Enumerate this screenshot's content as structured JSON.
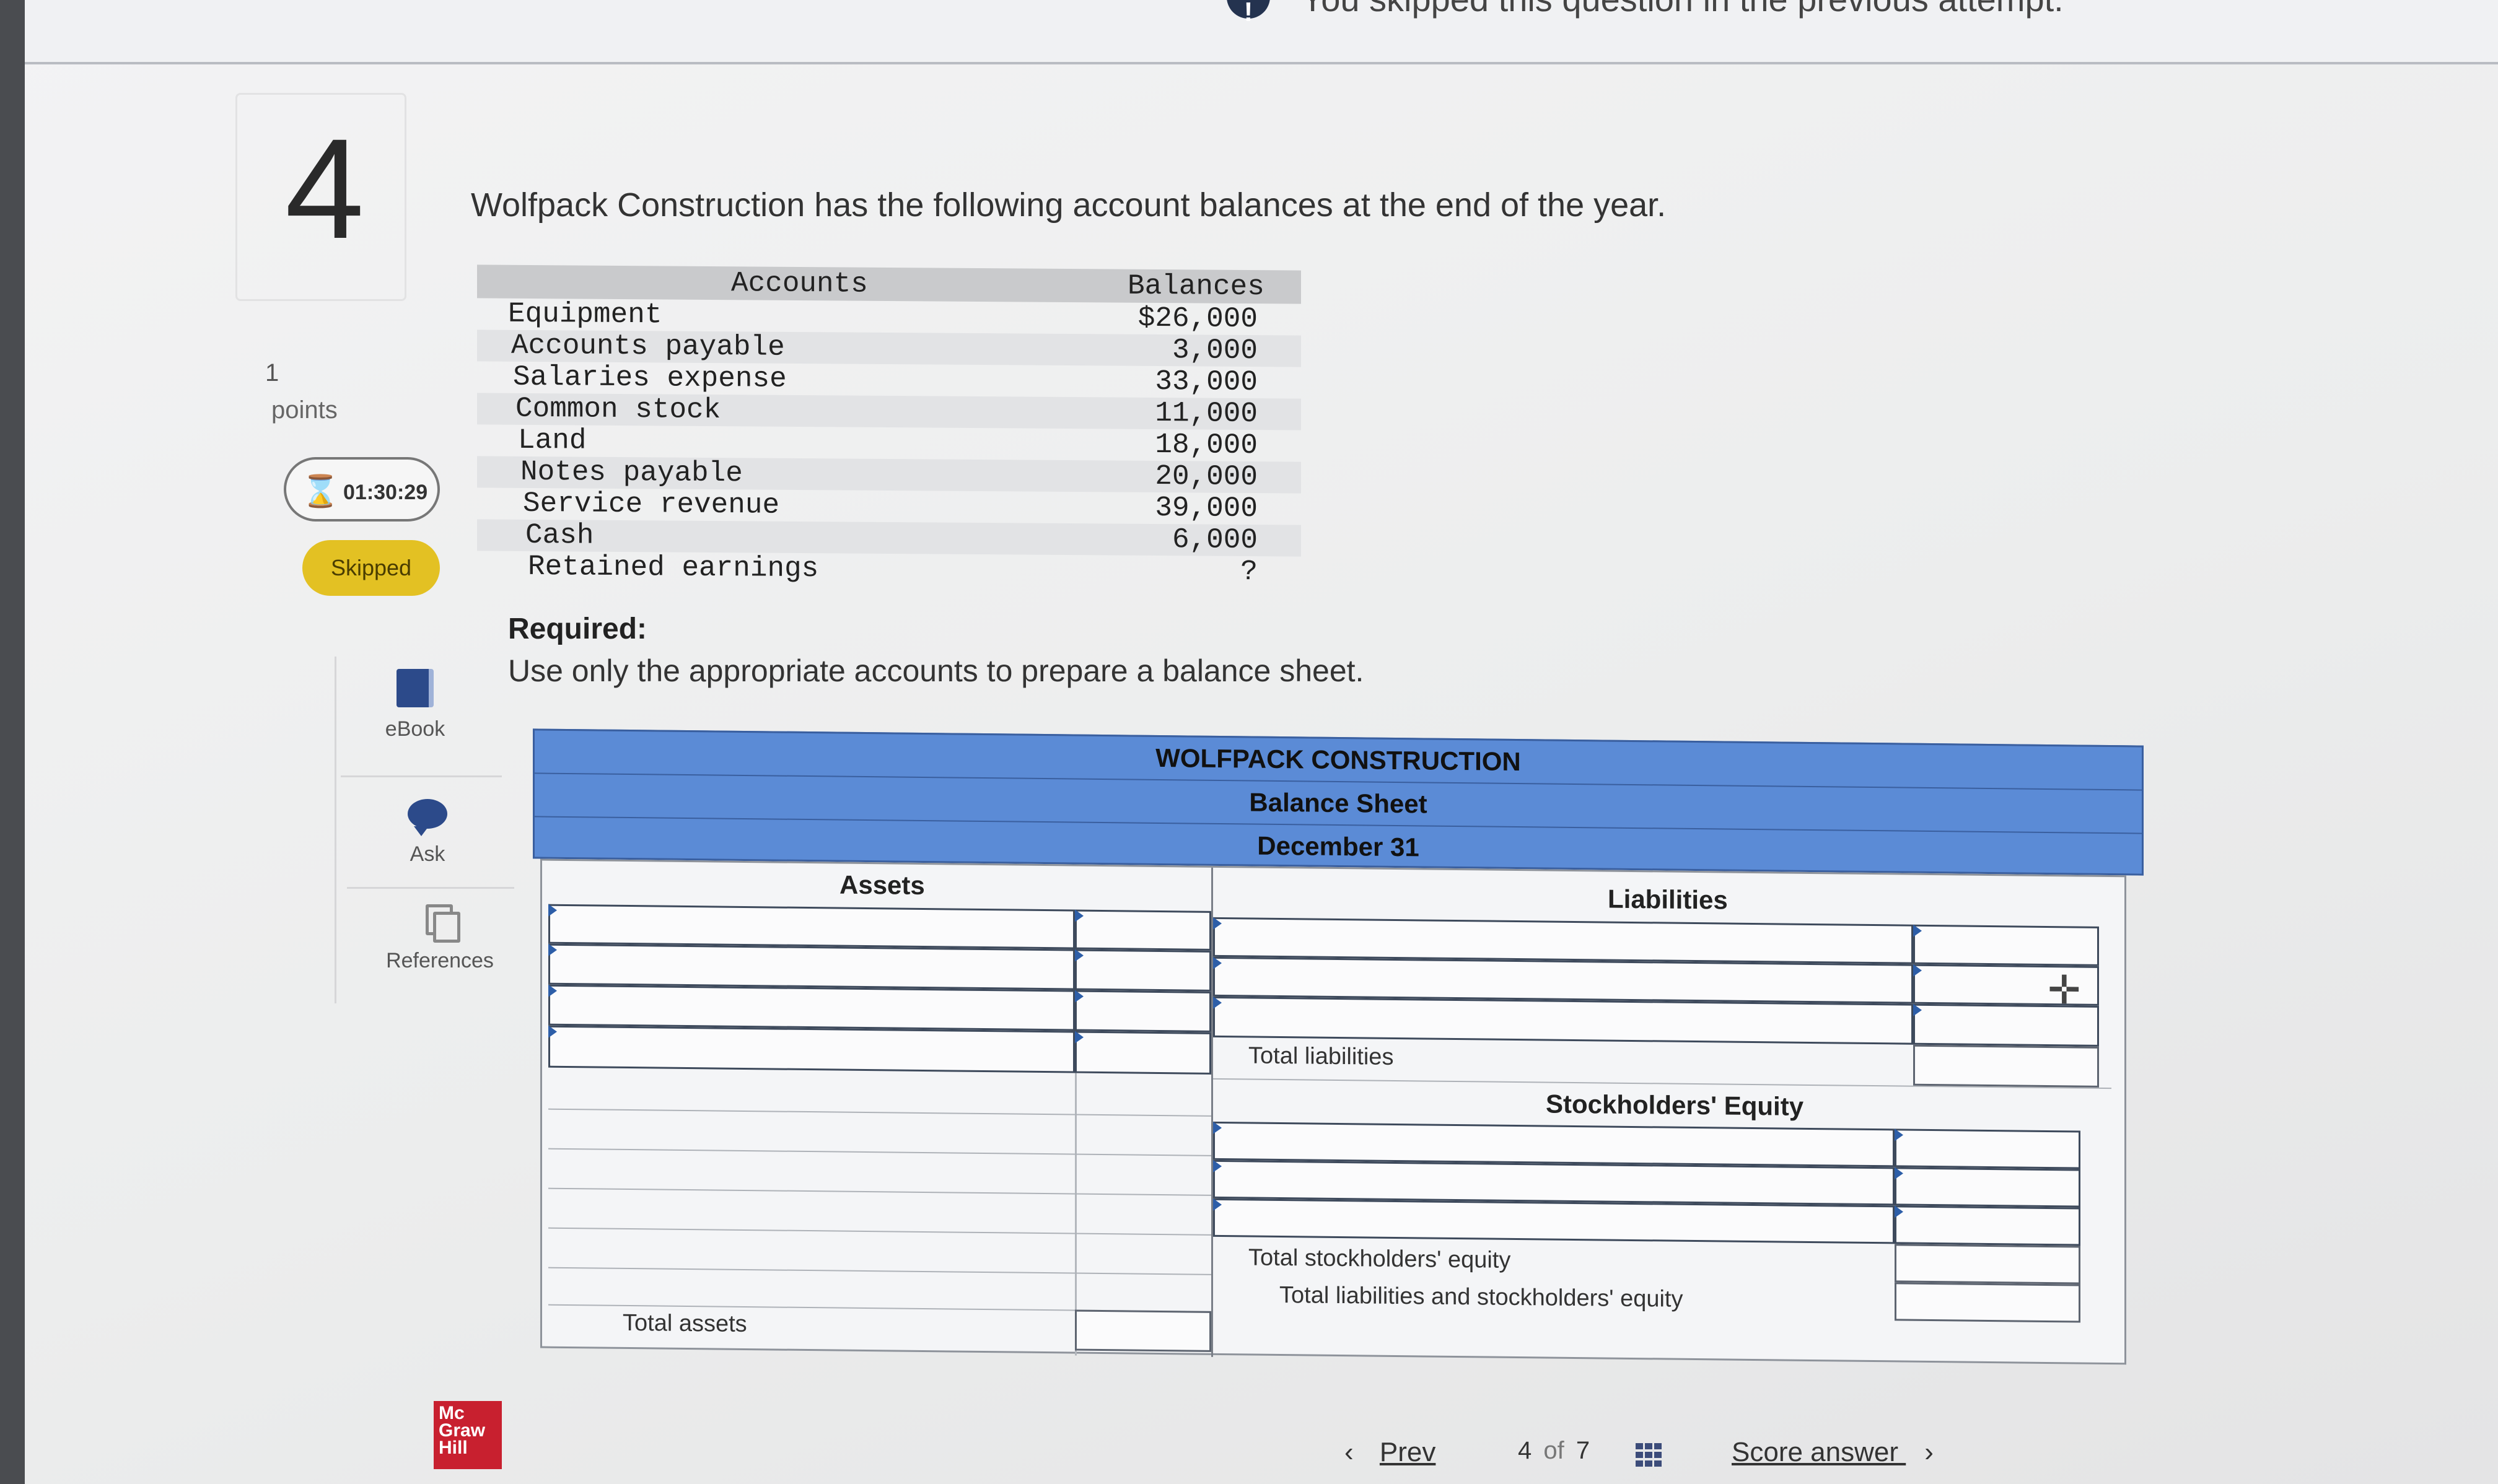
{
  "banner": {
    "text": "You skipped this question in the previous attempt."
  },
  "question": {
    "number": "4",
    "points_value": "1",
    "points_label": "points",
    "timer": "01:30:29",
    "status_badge": "Skipped"
  },
  "tools": [
    {
      "label": "eBook",
      "icon": "book-icon"
    },
    {
      "label": "Ask",
      "icon": "chat-bubble-icon"
    },
    {
      "label": "References",
      "icon": "copy-icon"
    }
  ],
  "intro_text": "Wolfpack Construction has the following account balances at the end of the year.",
  "accounts_table": {
    "headers": {
      "accounts": "Accounts",
      "balances": "Balances"
    },
    "rows": [
      {
        "account": "Equipment",
        "balance": "$26,000"
      },
      {
        "account": "Accounts payable",
        "balance": "3,000"
      },
      {
        "account": "Salaries expense",
        "balance": "33,000"
      },
      {
        "account": "Common stock",
        "balance": "11,000"
      },
      {
        "account": "Land",
        "balance": "18,000"
      },
      {
        "account": "Notes payable",
        "balance": "20,000"
      },
      {
        "account": "Service revenue",
        "balance": "39,000"
      },
      {
        "account": "Cash",
        "balance": "6,000"
      },
      {
        "account": "Retained earnings",
        "balance": "?"
      }
    ]
  },
  "required": {
    "label": "Required:",
    "text": "Use only the appropriate accounts to prepare a balance sheet."
  },
  "balance_sheet": {
    "company": "WOLFPACK CONSTRUCTION",
    "title": "Balance Sheet",
    "date": "December 31",
    "assets_heading": "Assets",
    "liabilities_heading": "Liabilities",
    "total_liabilities": "Total liabilities",
    "equity_heading": "Stockholders' Equity",
    "total_equity": "Total stockholders' equity",
    "total_assets": "Total assets",
    "total_liab_equity": "Total liabilities and stockholders' equity"
  },
  "footer": {
    "logo": "Mc Graw Hill",
    "prev": "Prev",
    "page_current": "4",
    "page_of": "of",
    "page_total": "7",
    "score": "Score answer"
  },
  "colors": {
    "header_blue": "#5b8bd6",
    "skipped_badge": "#e3c123",
    "logo_red": "#c8202f"
  }
}
